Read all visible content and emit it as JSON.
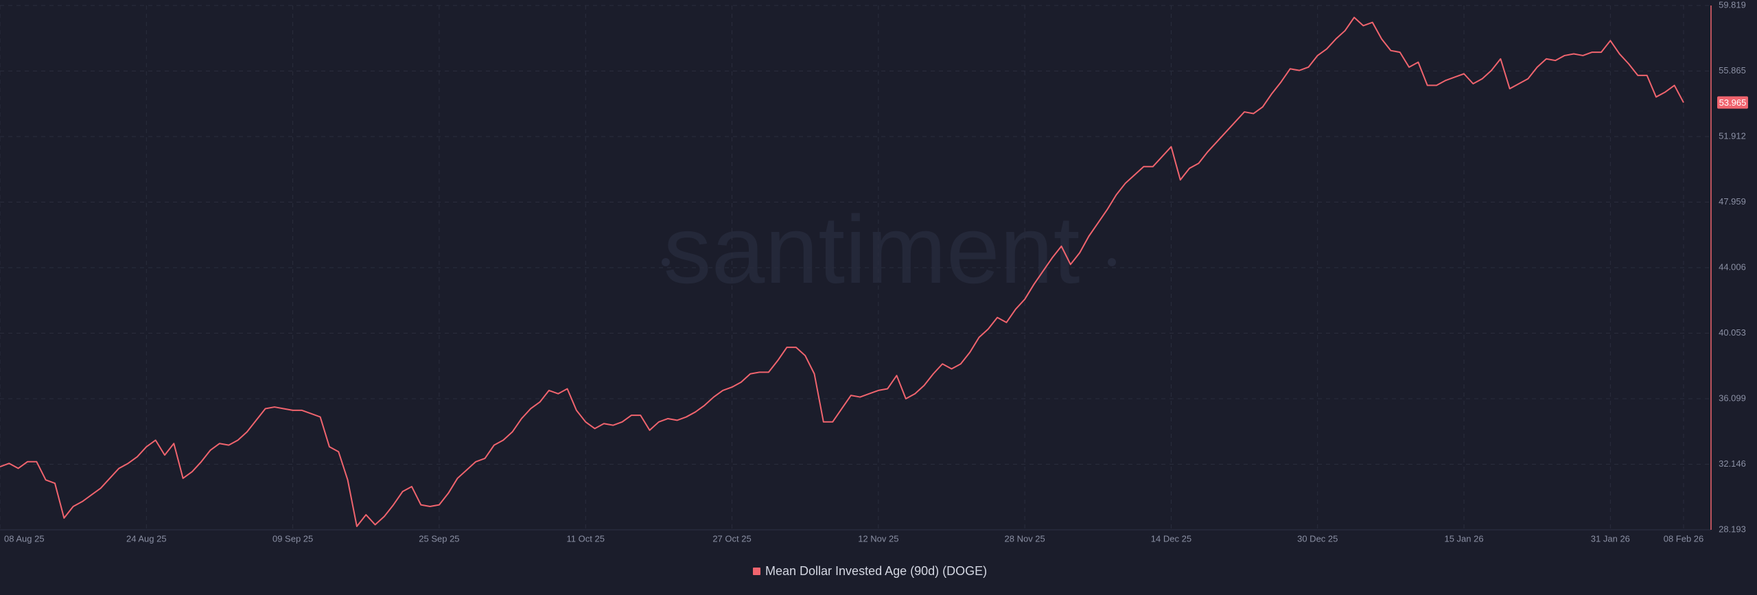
{
  "chart_data": {
    "type": "line",
    "watermark": "santiment",
    "x": [
      "2025-08-08",
      "2025-08-09",
      "2025-08-10",
      "2025-08-11",
      "2025-08-12",
      "2025-08-13",
      "2025-08-14",
      "2025-08-15",
      "2025-08-16",
      "2025-08-17",
      "2025-08-18",
      "2025-08-19",
      "2025-08-20",
      "2025-08-21",
      "2025-08-22",
      "2025-08-23",
      "2025-08-24",
      "2025-08-25",
      "2025-08-26",
      "2025-08-27",
      "2025-08-28",
      "2025-08-29",
      "2025-08-30",
      "2025-08-31",
      "2025-09-01",
      "2025-09-02",
      "2025-09-03",
      "2025-09-04",
      "2025-09-05",
      "2025-09-06",
      "2025-09-07",
      "2025-09-08",
      "2025-09-09",
      "2025-09-10",
      "2025-09-11",
      "2025-09-12",
      "2025-09-13",
      "2025-09-14",
      "2025-09-15",
      "2025-09-16",
      "2025-09-17",
      "2025-09-18",
      "2025-09-19",
      "2025-09-20",
      "2025-09-21",
      "2025-09-22",
      "2025-09-23",
      "2025-09-24",
      "2025-09-25",
      "2025-09-26",
      "2025-09-27",
      "2025-09-28",
      "2025-09-29",
      "2025-09-30",
      "2025-10-01",
      "2025-10-02",
      "2025-10-03",
      "2025-10-04",
      "2025-10-05",
      "2025-10-06",
      "2025-10-07",
      "2025-10-08",
      "2025-10-09",
      "2025-10-10",
      "2025-10-11",
      "2025-10-12",
      "2025-10-13",
      "2025-10-14",
      "2025-10-15",
      "2025-10-16",
      "2025-10-17",
      "2025-10-18",
      "2025-10-19",
      "2025-10-20",
      "2025-10-21",
      "2025-10-22",
      "2025-10-23",
      "2025-10-24",
      "2025-10-25",
      "2025-10-26",
      "2025-10-27",
      "2025-10-28",
      "2025-10-29",
      "2025-10-30",
      "2025-10-31",
      "2025-11-01",
      "2025-11-02",
      "2025-11-03",
      "2025-11-04",
      "2025-11-05",
      "2025-11-06",
      "2025-11-07",
      "2025-11-08",
      "2025-11-09",
      "2025-11-10",
      "2025-11-11",
      "2025-11-12",
      "2025-11-13",
      "2025-11-14",
      "2025-11-15",
      "2025-11-16",
      "2025-11-17",
      "2025-11-18",
      "2025-11-19",
      "2025-11-20",
      "2025-11-21",
      "2025-11-22",
      "2025-11-23",
      "2025-11-24",
      "2025-11-25",
      "2025-11-26",
      "2025-11-27",
      "2025-11-28",
      "2025-11-29",
      "2025-11-30",
      "2025-12-01",
      "2025-12-02",
      "2025-12-03",
      "2025-12-04",
      "2025-12-05",
      "2025-12-06",
      "2025-12-07",
      "2025-12-08",
      "2025-12-09",
      "2025-12-10",
      "2025-12-11",
      "2025-12-12",
      "2025-12-13",
      "2025-12-14",
      "2025-12-15",
      "2025-12-16",
      "2025-12-17",
      "2025-12-18",
      "2025-12-19",
      "2025-12-20",
      "2025-12-21",
      "2025-12-22",
      "2025-12-23",
      "2025-12-24",
      "2025-12-25",
      "2025-12-26",
      "2025-12-27",
      "2025-12-28",
      "2025-12-29",
      "2025-12-30",
      "2025-12-31",
      "2026-01-01",
      "2026-01-02",
      "2026-01-03",
      "2026-01-04",
      "2026-01-05",
      "2026-01-06",
      "2026-01-07",
      "2026-01-08",
      "2026-01-09",
      "2026-01-10",
      "2026-01-11",
      "2026-01-12",
      "2026-01-13",
      "2026-01-14",
      "2026-01-15",
      "2026-01-16",
      "2026-01-17",
      "2026-01-18",
      "2026-01-19",
      "2026-01-20",
      "2026-01-21",
      "2026-01-22",
      "2026-01-23",
      "2026-01-24",
      "2026-01-25",
      "2026-01-26",
      "2026-01-27",
      "2026-01-28",
      "2026-01-29",
      "2026-01-30",
      "2026-01-31",
      "2026-02-01",
      "2026-02-02",
      "2026-02-03",
      "2026-02-04",
      "2026-02-05",
      "2026-02-06",
      "2026-02-07",
      "2026-02-08"
    ],
    "series": [
      {
        "name": "Mean Dollar Invested Age (90d) (DOGE)",
        "color": "#f0646e",
        "values": [
          32.0,
          32.2,
          31.9,
          32.3,
          32.3,
          31.2,
          31.0,
          28.9,
          29.6,
          29.9,
          30.3,
          30.7,
          31.3,
          31.9,
          32.2,
          32.6,
          33.2,
          33.6,
          32.7,
          33.4,
          31.3,
          31.7,
          32.3,
          33.0,
          33.4,
          33.3,
          33.6,
          34.1,
          34.8,
          35.5,
          35.6,
          35.5,
          35.4,
          35.4,
          35.2,
          35.0,
          33.2,
          32.9,
          31.2,
          28.4,
          29.1,
          28.5,
          29.0,
          29.7,
          30.5,
          30.8,
          29.7,
          29.6,
          29.7,
          30.4,
          31.3,
          31.8,
          32.3,
          32.5,
          33.3,
          33.6,
          34.1,
          34.9,
          35.5,
          35.9,
          36.6,
          36.4,
          36.7,
          35.4,
          34.7,
          34.3,
          34.6,
          34.5,
          34.7,
          35.1,
          35.1,
          34.2,
          34.7,
          34.9,
          34.8,
          35.0,
          35.3,
          35.7,
          36.2,
          36.6,
          36.8,
          37.1,
          37.6,
          37.7,
          37.7,
          38.4,
          39.2,
          39.2,
          38.7,
          37.6,
          34.7,
          34.7,
          35.5,
          36.3,
          36.2,
          36.4,
          36.6,
          36.7,
          37.5,
          36.1,
          36.4,
          36.9,
          37.6,
          38.2,
          37.9,
          38.2,
          38.9,
          39.8,
          40.3,
          41.0,
          40.7,
          41.5,
          42.1,
          43.0,
          43.8,
          44.6,
          45.3,
          44.2,
          44.9,
          45.9,
          46.7,
          47.5,
          48.4,
          49.1,
          49.6,
          50.1,
          50.1,
          50.7,
          51.3,
          49.3,
          50.0,
          50.3,
          51.0,
          51.6,
          52.2,
          52.8,
          53.4,
          53.3,
          53.7,
          54.5,
          55.2,
          56.0,
          55.9,
          56.1,
          56.8,
          57.2,
          57.8,
          58.3,
          59.1,
          58.6,
          58.8,
          57.8,
          57.1,
          57.0,
          56.1,
          56.4,
          55.0,
          55.0,
          55.3,
          55.5,
          55.7,
          55.1,
          55.4,
          55.9,
          56.6,
          54.8,
          55.1,
          55.4,
          56.1,
          56.6,
          56.5,
          56.8,
          56.9,
          56.8,
          57.0,
          57.0,
          57.7,
          56.9,
          56.3,
          55.6,
          55.6,
          54.3,
          54.6,
          55.0,
          53.965
        ]
      }
    ],
    "xlim": [
      "2025-08-08",
      "2026-02-11"
    ],
    "xticks": [
      {
        "value": "2025-08-08",
        "label": "08 Aug 25"
      },
      {
        "value": "2025-08-24",
        "label": "24 Aug 25"
      },
      {
        "value": "2025-09-09",
        "label": "09 Sep 25"
      },
      {
        "value": "2025-09-25",
        "label": "25 Sep 25"
      },
      {
        "value": "2025-10-11",
        "label": "11 Oct 25"
      },
      {
        "value": "2025-10-27",
        "label": "27 Oct 25"
      },
      {
        "value": "2025-11-12",
        "label": "12 Nov 25"
      },
      {
        "value": "2025-11-28",
        "label": "28 Nov 25"
      },
      {
        "value": "2025-12-14",
        "label": "14 Dec 25"
      },
      {
        "value": "2025-12-30",
        "label": "30 Dec 25"
      },
      {
        "value": "2026-01-15",
        "label": "15 Jan 26"
      },
      {
        "value": "2026-01-31",
        "label": "31 Jan 26"
      },
      {
        "value": "2026-02-08",
        "label": "08 Feb 26"
      }
    ],
    "ylim": [
      28.193,
      59.819
    ],
    "yticks": [
      28.193,
      32.146,
      36.099,
      40.053,
      44.006,
      47.959,
      51.912,
      55.865,
      59.819
    ],
    "grid": true
  }
}
